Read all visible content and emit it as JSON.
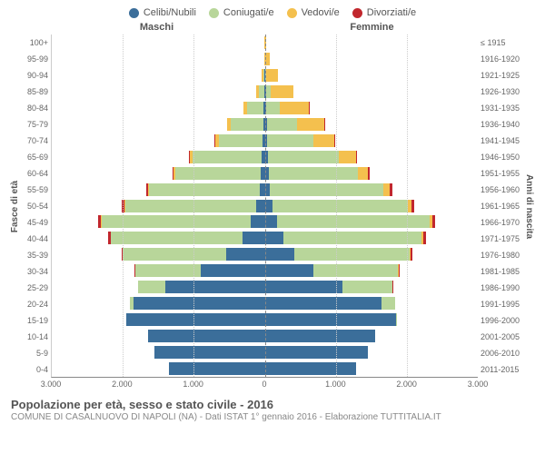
{
  "legend": [
    {
      "label": "Celibi/Nubili",
      "color": "#3b6e9a"
    },
    {
      "label": "Coniugati/e",
      "color": "#b8d69a"
    },
    {
      "label": "Vedovi/e",
      "color": "#f4c04e"
    },
    {
      "label": "Divorziati/e",
      "color": "#c1272d"
    }
  ],
  "headers": {
    "male": "Maschi",
    "female": "Femmine"
  },
  "ylabel_left": "Fasce di età",
  "ylabel_right": "Anni di nascita",
  "age_labels": [
    "100+",
    "95-99",
    "90-94",
    "85-89",
    "80-84",
    "75-79",
    "70-74",
    "65-69",
    "60-64",
    "55-59",
    "50-54",
    "45-49",
    "40-44",
    "35-39",
    "30-34",
    "25-29",
    "20-24",
    "15-19",
    "10-14",
    "5-9",
    "0-4"
  ],
  "birth_labels": [
    "≤ 1915",
    "1916-1920",
    "1921-1925",
    "1926-1930",
    "1931-1935",
    "1936-1940",
    "1941-1945",
    "1946-1950",
    "1951-1955",
    "1956-1960",
    "1961-1965",
    "1966-1970",
    "1971-1975",
    "1976-1980",
    "1981-1985",
    "1986-1990",
    "1991-1995",
    "1996-2000",
    "2001-2005",
    "2006-2010",
    "2011-2015"
  ],
  "max": 3000,
  "xticks": [
    3000,
    2000,
    1000,
    0,
    1000,
    2000,
    3000
  ],
  "colors": {
    "celibi": "#3b6e9a",
    "coniugati": "#b8d69a",
    "vedovi": "#f4c04e",
    "divorziati": "#c1272d"
  },
  "rows": [
    {
      "m": {
        "c": 0,
        "k": 0,
        "v": 5,
        "d": 0
      },
      "f": {
        "c": 0,
        "k": 0,
        "v": 15,
        "d": 0
      }
    },
    {
      "m": {
        "c": 0,
        "k": 0,
        "v": 10,
        "d": 0
      },
      "f": {
        "c": 5,
        "k": 0,
        "v": 70,
        "d": 0
      }
    },
    {
      "m": {
        "c": 5,
        "k": 15,
        "v": 25,
        "d": 0
      },
      "f": {
        "c": 10,
        "k": 10,
        "v": 170,
        "d": 0
      }
    },
    {
      "m": {
        "c": 10,
        "k": 70,
        "v": 40,
        "d": 0
      },
      "f": {
        "c": 20,
        "k": 60,
        "v": 320,
        "d": 0
      }
    },
    {
      "m": {
        "c": 15,
        "k": 230,
        "v": 60,
        "d": 0
      },
      "f": {
        "c": 25,
        "k": 190,
        "v": 400,
        "d": 5
      }
    },
    {
      "m": {
        "c": 25,
        "k": 450,
        "v": 55,
        "d": 5
      },
      "f": {
        "c": 30,
        "k": 420,
        "v": 390,
        "d": 5
      }
    },
    {
      "m": {
        "c": 30,
        "k": 620,
        "v": 50,
        "d": 5
      },
      "f": {
        "c": 35,
        "k": 650,
        "v": 300,
        "d": 10
      }
    },
    {
      "m": {
        "c": 40,
        "k": 980,
        "v": 40,
        "d": 10
      },
      "f": {
        "c": 45,
        "k": 1000,
        "v": 240,
        "d": 15
      }
    },
    {
      "m": {
        "c": 55,
        "k": 1200,
        "v": 25,
        "d": 15
      },
      "f": {
        "c": 55,
        "k": 1250,
        "v": 150,
        "d": 20
      }
    },
    {
      "m": {
        "c": 75,
        "k": 1550,
        "v": 15,
        "d": 25
      },
      "f": {
        "c": 75,
        "k": 1600,
        "v": 90,
        "d": 30
      }
    },
    {
      "m": {
        "c": 120,
        "k": 1850,
        "v": 10,
        "d": 35
      },
      "f": {
        "c": 110,
        "k": 1900,
        "v": 55,
        "d": 40
      }
    },
    {
      "m": {
        "c": 200,
        "k": 2100,
        "v": 8,
        "d": 40
      },
      "f": {
        "c": 170,
        "k": 2150,
        "v": 35,
        "d": 45
      }
    },
    {
      "m": {
        "c": 320,
        "k": 1850,
        "v": 5,
        "d": 35
      },
      "f": {
        "c": 260,
        "k": 1950,
        "v": 20,
        "d": 40
      }
    },
    {
      "m": {
        "c": 550,
        "k": 1450,
        "v": 0,
        "d": 20
      },
      "f": {
        "c": 420,
        "k": 1620,
        "v": 10,
        "d": 30
      }
    },
    {
      "m": {
        "c": 900,
        "k": 920,
        "v": 0,
        "d": 10
      },
      "f": {
        "c": 680,
        "k": 1200,
        "v": 5,
        "d": 15
      }
    },
    {
      "m": {
        "c": 1400,
        "k": 380,
        "v": 0,
        "d": 5
      },
      "f": {
        "c": 1100,
        "k": 700,
        "v": 0,
        "d": 8
      }
    },
    {
      "m": {
        "c": 1850,
        "k": 50,
        "v": 0,
        "d": 0
      },
      "f": {
        "c": 1650,
        "k": 180,
        "v": 0,
        "d": 0
      }
    },
    {
      "m": {
        "c": 1950,
        "k": 0,
        "v": 0,
        "d": 0
      },
      "f": {
        "c": 1850,
        "k": 10,
        "v": 0,
        "d": 0
      }
    },
    {
      "m": {
        "c": 1650,
        "k": 0,
        "v": 0,
        "d": 0
      },
      "f": {
        "c": 1550,
        "k": 0,
        "v": 0,
        "d": 0
      }
    },
    {
      "m": {
        "c": 1550,
        "k": 0,
        "v": 0,
        "d": 0
      },
      "f": {
        "c": 1450,
        "k": 0,
        "v": 0,
        "d": 0
      }
    },
    {
      "m": {
        "c": 1350,
        "k": 0,
        "v": 0,
        "d": 0
      },
      "f": {
        "c": 1280,
        "k": 0,
        "v": 0,
        "d": 0
      }
    }
  ],
  "title": "Popolazione per età, sesso e stato civile - 2016",
  "subtitle": "COMUNE DI CASALNUOVO DI NAPOLI (NA) - Dati ISTAT 1° gennaio 2016 - Elaborazione TUTTITALIA.IT"
}
